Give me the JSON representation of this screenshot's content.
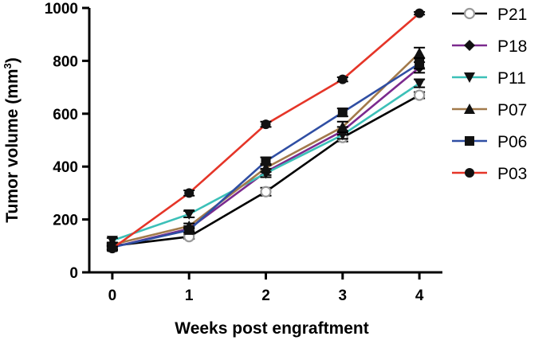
{
  "chart_data": {
    "type": "line",
    "title": "",
    "xlabel": "Weeks post engraftment",
    "ylabel_main": "Tumor volume (mm",
    "ylabel_sup": "3",
    "ylabel_end": ")",
    "x": [
      0,
      1,
      2,
      3,
      4
    ],
    "xticks": [
      "0",
      "1",
      "2",
      "3",
      "4"
    ],
    "yticks": [
      "0",
      "200",
      "400",
      "600",
      "800",
      "1000"
    ],
    "ylim": [
      0,
      1000
    ],
    "xlim": [
      -0.3,
      4.3
    ],
    "legend_position": "right",
    "series": [
      {
        "name": "P21",
        "color": "#000000",
        "marker": "open-circle",
        "values": [
          100,
          135,
          305,
          510,
          670
        ],
        "errors": [
          8,
          8,
          15,
          15,
          12
        ]
      },
      {
        "name": "P18",
        "color": "#7b2a8e",
        "marker": "diamond",
        "values": [
          95,
          165,
          380,
          535,
          775
        ],
        "errors": [
          8,
          10,
          12,
          15,
          20
        ]
      },
      {
        "name": "P11",
        "color": "#3cc0b8",
        "marker": "triangle-down",
        "values": [
          120,
          220,
          375,
          520,
          715
        ],
        "errors": [
          10,
          12,
          15,
          15,
          15
        ]
      },
      {
        "name": "P07",
        "color": "#a27a4b",
        "marker": "triangle-up",
        "values": [
          105,
          175,
          395,
          550,
          830
        ],
        "errors": [
          8,
          10,
          15,
          20,
          20
        ]
      },
      {
        "name": "P06",
        "color": "#2f4ea3",
        "marker": "square",
        "values": [
          95,
          160,
          420,
          605,
          790
        ],
        "errors": [
          8,
          10,
          15,
          15,
          20
        ]
      },
      {
        "name": "P03",
        "color": "#e53528",
        "marker": "circle",
        "values": [
          90,
          300,
          560,
          730,
          980
        ],
        "errors": [
          8,
          10,
          10,
          8,
          5
        ]
      }
    ]
  }
}
